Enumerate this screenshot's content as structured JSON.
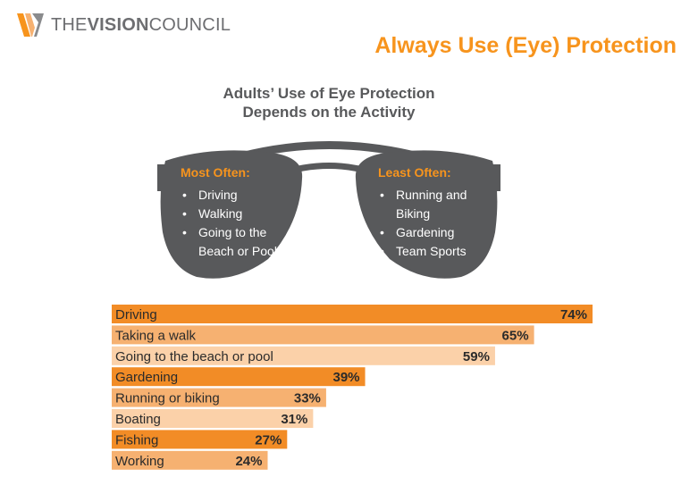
{
  "header": {
    "logo_text_the": "THE",
    "logo_text_vision": "VISION",
    "logo_text_council": "COUNCIL",
    "title": "Always Use (Eye) Protection"
  },
  "infographic": {
    "title_line1": "Adults’ Use of Eye Protection",
    "title_line2": "Depends on the Activity",
    "left_lens": {
      "heading": "Most Often:",
      "items": [
        "Driving",
        "Walking",
        "Going to the Beach or Pool"
      ]
    },
    "right_lens": {
      "heading": "Least Often:",
      "items": [
        "Running and Biking",
        "Gardening",
        "Team Sports"
      ]
    }
  },
  "colors": {
    "accent": "#f7941d",
    "text_gray": "#58595b",
    "lens": "#58595b",
    "bar_dark": "#f28c26",
    "bar_mid": "#f6b171",
    "bar_light": "#fbd1a9"
  },
  "chart_data": {
    "type": "bar",
    "orientation": "horizontal",
    "categories": [
      "Driving",
      "Taking a walk",
      "Going to the beach or pool",
      "Gardening",
      "Running or biking",
      "Boating",
      "Fishing",
      "Working"
    ],
    "values": [
      74,
      65,
      59,
      39,
      33,
      31,
      27,
      24
    ],
    "value_labels": [
      "74%",
      "65%",
      "59%",
      "39%",
      "33%",
      "31%",
      "27%",
      "24%"
    ],
    "shades": [
      "dark",
      "mid",
      "light",
      "dark",
      "mid",
      "light",
      "dark",
      "mid"
    ],
    "xlim": [
      0,
      74
    ],
    "grid": false,
    "legend": "none"
  }
}
